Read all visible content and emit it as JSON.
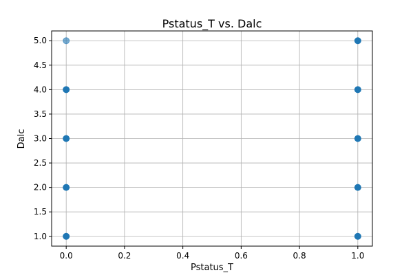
{
  "chart_data": {
    "type": "scatter",
    "title": "Pstatus_T vs. Dalc",
    "xlabel": "Pstatus_T",
    "ylabel": "Dalc",
    "xlim": [
      -0.05,
      1.05
    ],
    "ylim": [
      0.8,
      5.2
    ],
    "xticks": [
      0.0,
      0.2,
      0.4,
      0.6,
      0.8,
      1.0
    ],
    "xtick_labels": [
      "0.0",
      "0.2",
      "0.4",
      "0.6",
      "0.8",
      "1.0"
    ],
    "yticks": [
      1.0,
      1.5,
      2.0,
      2.5,
      3.0,
      3.5,
      4.0,
      4.5,
      5.0
    ],
    "ytick_labels": [
      "1.0",
      "1.5",
      "2.0",
      "2.5",
      "3.0",
      "3.5",
      "4.0",
      "4.5",
      "5.0"
    ],
    "grid": true,
    "marker_color": "#1f77b4",
    "points": [
      {
        "x": 0,
        "y": 1,
        "density": "high"
      },
      {
        "x": 0,
        "y": 2,
        "density": "high"
      },
      {
        "x": 0,
        "y": 3,
        "density": "high"
      },
      {
        "x": 0,
        "y": 4,
        "density": "high"
      },
      {
        "x": 0,
        "y": 5,
        "density": "low"
      },
      {
        "x": 1,
        "y": 1,
        "density": "high"
      },
      {
        "x": 1,
        "y": 2,
        "density": "high"
      },
      {
        "x": 1,
        "y": 3,
        "density": "high"
      },
      {
        "x": 1,
        "y": 4,
        "density": "high"
      },
      {
        "x": 1,
        "y": 5,
        "density": "high"
      }
    ]
  }
}
